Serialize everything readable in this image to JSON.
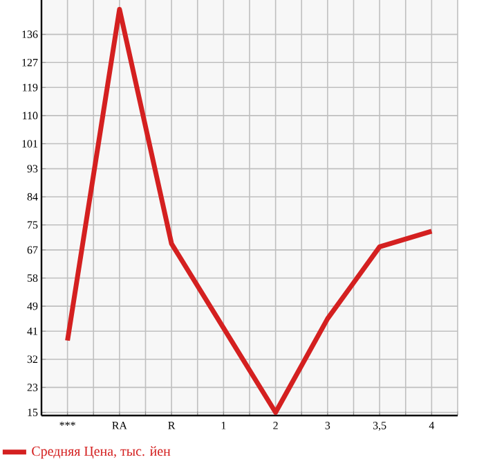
{
  "chart_data": {
    "type": "line",
    "categories": [
      "***",
      "RA",
      "R",
      "1",
      "2",
      "3",
      "3,5",
      "4"
    ],
    "series": [
      {
        "name": "Средняя Цена, тыс. йен",
        "color": "#d42020",
        "values": [
          38,
          144,
          69,
          42,
          15,
          45,
          68,
          73
        ]
      }
    ],
    "ylim": [
      14,
      147
    ],
    "yticks": [
      15,
      23,
      32,
      41,
      49,
      58,
      67,
      75,
      84,
      93,
      101,
      110,
      119,
      127,
      136
    ],
    "grid": true,
    "legend": "bottom left",
    "marker": "none",
    "line_style": "solid"
  }
}
